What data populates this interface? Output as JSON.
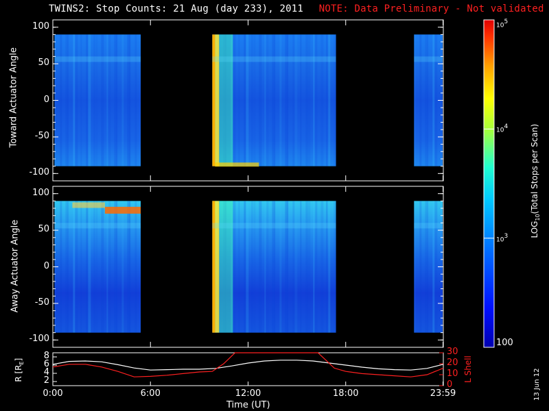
{
  "header": {
    "title": "TWINS2: Stop Counts: 21 Aug (day 233), 2011",
    "note": "NOTE: Data Preliminary - Not validated",
    "note_color": "#ff2020"
  },
  "stamp": "13 Jun 12",
  "chart_data": [
    {
      "type": "heatmap",
      "title": "",
      "ylabel": "Toward Actuator Angle",
      "ylim": [
        -110,
        110
      ],
      "yticks": [
        100,
        50,
        0,
        -50,
        -100
      ],
      "xlim_hours": [
        0,
        24
      ],
      "data_blocks_hours": [
        [
          0.1,
          5.4
        ],
        [
          9.8,
          17.4
        ],
        [
          22.2,
          24
        ]
      ],
      "data_angle_range": [
        -90,
        90
      ],
      "colorscale": "rainbow_log"
    },
    {
      "type": "heatmap",
      "title": "",
      "ylabel": "Away Actuator Angle",
      "ylim": [
        -110,
        110
      ],
      "yticks": [
        100,
        50,
        0,
        -50,
        -100
      ],
      "xlim_hours": [
        0,
        24
      ],
      "data_blocks_hours": [
        [
          0.1,
          5.4
        ],
        [
          9.8,
          17.4
        ],
        [
          22.2,
          24
        ]
      ],
      "data_angle_range": [
        -90,
        90
      ],
      "colorscale": "rainbow_log"
    },
    {
      "type": "line",
      "ylabel_left": "R [RE]",
      "ylabel_right": "L Shell",
      "ylim_left": [
        1,
        9
      ],
      "yticks_left": [
        2,
        4,
        6,
        8
      ],
      "ylim_right": [
        0,
        30
      ],
      "yticks_right": [
        0,
        10,
        20,
        30
      ],
      "xlabel": "Time (UT)",
      "xticks": [
        "0:00",
        "6:00",
        "12:00",
        "18:00",
        "23:59"
      ],
      "xtick_hours": [
        0,
        6,
        12,
        18,
        23.98
      ],
      "series": [
        {
          "color": "#ffffff",
          "axis": "left",
          "x": [
            0,
            1,
            2,
            3,
            4,
            5,
            6,
            7,
            8,
            9,
            10,
            11,
            12,
            13,
            14,
            15,
            16,
            17,
            18,
            19,
            20,
            21,
            22,
            23,
            24
          ],
          "y": [
            6.2,
            6.9,
            7.0,
            6.8,
            6.1,
            5.3,
            4.8,
            4.9,
            5.0,
            5.0,
            5.2,
            5.8,
            6.5,
            7.0,
            7.2,
            7.2,
            7.0,
            6.5,
            6.0,
            5.5,
            5.1,
            4.9,
            4.8,
            5.2,
            6.2
          ]
        },
        {
          "color": "#ff2020",
          "axis": "right",
          "x": [
            0,
            1,
            2,
            3,
            4,
            5,
            6,
            7,
            8,
            9,
            9.8,
            10.5,
            11.2,
            16.3,
            16.8,
            17.3,
            18,
            19,
            20,
            21,
            22,
            23,
            24
          ],
          "y": [
            17,
            19.5,
            19.5,
            17,
            13,
            8,
            8.5,
            9.5,
            11,
            12.5,
            13,
            20,
            30,
            30,
            23,
            16,
            13,
            11,
            10,
            9,
            8,
            10,
            16
          ]
        }
      ]
    }
  ],
  "colorbar": {
    "label": "LOG10(Total Stops per Scan)",
    "label_main": "LOG",
    "label_sub": "10",
    "label_rest": "(Total Stops per Scan)",
    "tick_labels": [
      "10^5",
      "10^4",
      "10^3",
      "100"
    ],
    "tick_values": [
      100000,
      10000,
      1000,
      100
    ]
  }
}
